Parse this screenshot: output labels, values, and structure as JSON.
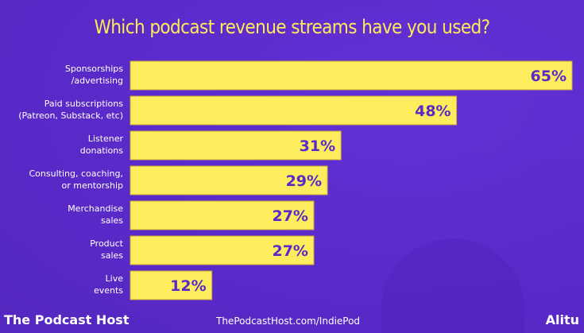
{
  "chart_data": {
    "type": "bar",
    "orientation": "horizontal",
    "title": "Which podcast revenue streams have you used?",
    "categories": [
      [
        "Sponsorships",
        "/advertising"
      ],
      [
        "Paid subscriptions",
        "(Patreon, Substack, etc)"
      ],
      [
        "Listener",
        "donations"
      ],
      [
        "Consulting, coaching,",
        "or mentorship"
      ],
      [
        "Merchandise",
        "sales"
      ],
      [
        "Product",
        "sales"
      ],
      [
        "Live",
        "events"
      ]
    ],
    "values": [
      65,
      48,
      31,
      29,
      27,
      27,
      12
    ],
    "value_labels": [
      "65%",
      "48%",
      "31%",
      "29%",
      "27%",
      "27%",
      "12%"
    ],
    "unit": "%",
    "xlim": [
      0,
      65
    ],
    "grid": false,
    "legend": "none",
    "colors": {
      "bar": "#fdec5c",
      "bar_border": "#c9a93a",
      "label_text": "#ffffff",
      "value_text": "#5a2ac9",
      "title": "#fdea5a",
      "background": "#5a2ac9"
    }
  },
  "footer": {
    "brand_left": "The Podcast Host",
    "url": "ThePodcastHost.com/IndiePod",
    "brand_right": "Alitu"
  }
}
